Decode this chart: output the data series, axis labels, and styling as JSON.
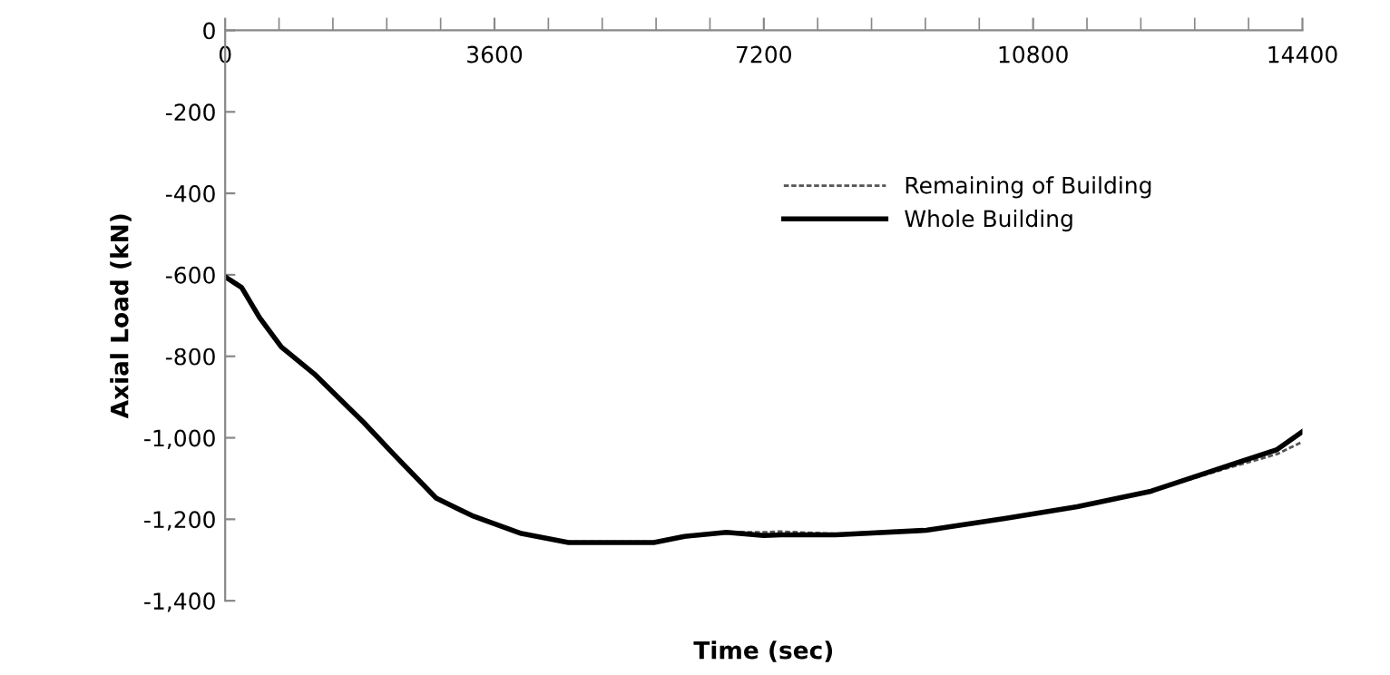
{
  "chart_data": {
    "type": "line",
    "xlabel": "Time (sec)",
    "ylabel": "Axial Load (kN)",
    "xlim": [
      0,
      14400
    ],
    "xticks": [
      0,
      3600,
      7200,
      10800,
      14400
    ],
    "ylim": [
      -1400,
      0
    ],
    "yticks": [
      {
        "value": -1400,
        "label": "-1,400"
      },
      {
        "value": -1200,
        "label": "-1,200"
      },
      {
        "value": -1000,
        "label": "-1,000"
      },
      -800,
      -600,
      -400,
      -200,
      0
    ],
    "grid": false,
    "legend": "top right",
    "marker": "none",
    "series": [
      {
        "name": "Remaining of Building",
        "color": "#555555",
        "line_style": "dashed",
        "x": [
          0,
          220,
          460,
          750,
          1190,
          1850,
          2260,
          2820,
          3300,
          3960,
          4590,
          5730,
          6140,
          6700,
          7200,
          7430,
          8160,
          9370,
          10420,
          11390,
          12360,
          13330,
          14060,
          14400
        ],
        "values": [
          -605,
          -631,
          -705,
          -777,
          -843,
          -962,
          -1042,
          -1148,
          -1191,
          -1235,
          -1255,
          -1255,
          -1240,
          -1232,
          -1232,
          -1230,
          -1236,
          -1225,
          -1198,
          -1169,
          -1132,
          -1078,
          -1040,
          -1010
        ]
      },
      {
        "name": "Whole Building",
        "color": "#000000",
        "line_style": "solid",
        "x": [
          0,
          220,
          460,
          750,
          1190,
          1850,
          2260,
          2820,
          3300,
          3960,
          4590,
          5730,
          6140,
          6700,
          7200,
          7430,
          8160,
          9370,
          10420,
          11390,
          12360,
          13330,
          14060,
          14400
        ],
        "values": [
          -605,
          -631,
          -705,
          -777,
          -843,
          -962,
          -1042,
          -1148,
          -1191,
          -1235,
          -1257,
          -1257,
          -1242,
          -1232,
          -1240,
          -1238,
          -1238,
          -1227,
          -1198,
          -1169,
          -1132,
          -1073,
          -1029,
          -985
        ]
      }
    ]
  }
}
